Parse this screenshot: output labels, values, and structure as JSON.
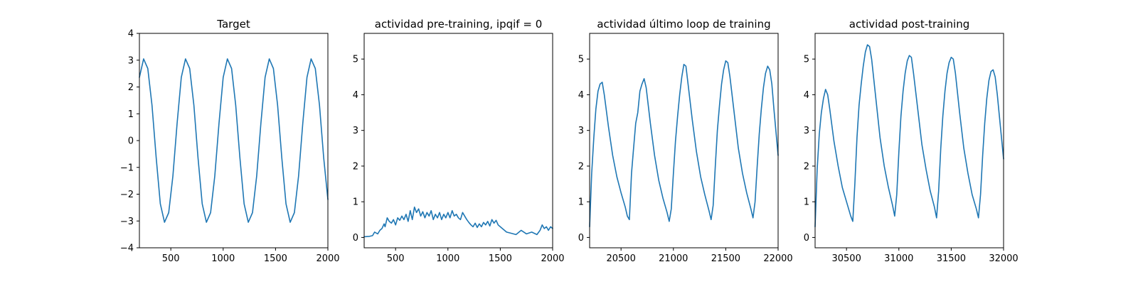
{
  "chart_data": [
    {
      "type": "line",
      "title": "Target",
      "xlabel": "",
      "ylabel": "",
      "xlim": [
        200,
        2000
      ],
      "ylim": [
        -4,
        4
      ],
      "xticks": [
        500,
        1000,
        1500,
        2000
      ],
      "yticks": [
        -4,
        -3,
        -2,
        -1,
        0,
        1,
        2,
        3,
        4
      ],
      "xtick_labels": [
        "500",
        "1000",
        "1500",
        "2000"
      ],
      "ytick_labels": [
        "−4",
        "−3",
        "−2",
        "−1",
        "0",
        "1",
        "2",
        "3",
        "4"
      ],
      "grid": false,
      "series": [
        {
          "color": "#1f77b4",
          "x": [
            200,
            240,
            280,
            320,
            360,
            400,
            440,
            480,
            520,
            560,
            600,
            640,
            680,
            720,
            760,
            800,
            840,
            880,
            920,
            960,
            1000,
            1040,
            1080,
            1120,
            1160,
            1200,
            1240,
            1280,
            1320,
            1360,
            1400,
            1440,
            1480,
            1520,
            1560,
            1600,
            1640,
            1680,
            1720,
            1760,
            1800,
            1840,
            1880,
            1920,
            1960,
            2000
          ],
          "y": [
            2.36,
            3.05,
            2.69,
            1.32,
            -0.64,
            -2.36,
            -3.05,
            -2.69,
            -1.32,
            0.64,
            2.36,
            3.05,
            2.69,
            1.32,
            -0.64,
            -2.36,
            -3.05,
            -2.69,
            -1.32,
            0.64,
            2.36,
            3.05,
            2.69,
            1.32,
            -0.64,
            -2.36,
            -3.05,
            -2.69,
            -1.32,
            0.64,
            2.36,
            3.05,
            2.69,
            1.32,
            -0.64,
            -2.36,
            -3.05,
            -2.69,
            -1.32,
            0.64,
            2.36,
            3.05,
            2.69,
            1.32,
            -0.64,
            -2.2
          ]
        }
      ]
    },
    {
      "type": "line",
      "title": "actividad pre-training, ipqif = 0",
      "xlabel": "",
      "ylabel": "",
      "xlim": [
        200,
        2000
      ],
      "ylim": [
        -0.29,
        5.72
      ],
      "xticks": [
        500,
        1000,
        1500,
        2000
      ],
      "yticks": [
        0,
        1,
        2,
        3,
        4,
        5
      ],
      "xtick_labels": [
        "500",
        "1000",
        "1500",
        "2000"
      ],
      "ytick_labels": [
        "0",
        "1",
        "2",
        "3",
        "4",
        "5"
      ],
      "grid": false,
      "series": [
        {
          "color": "#1f77b4",
          "x": [
            200,
            250,
            280,
            300,
            330,
            350,
            370,
            390,
            400,
            420,
            440,
            460,
            480,
            500,
            520,
            540,
            560,
            580,
            600,
            620,
            640,
            660,
            680,
            700,
            720,
            740,
            760,
            780,
            800,
            820,
            840,
            860,
            880,
            900,
            920,
            940,
            960,
            980,
            1000,
            1020,
            1040,
            1060,
            1080,
            1100,
            1120,
            1140,
            1160,
            1180,
            1200,
            1220,
            1240,
            1260,
            1280,
            1300,
            1320,
            1340,
            1360,
            1380,
            1400,
            1420,
            1440,
            1460,
            1480,
            1500,
            1520,
            1540,
            1560,
            1600,
            1650,
            1700,
            1750,
            1800,
            1850,
            1880,
            1900,
            1920,
            1940,
            1960,
            1980,
            2000
          ],
          "y": [
            0.02,
            0.03,
            0.05,
            0.15,
            0.1,
            0.2,
            0.25,
            0.38,
            0.3,
            0.55,
            0.45,
            0.4,
            0.5,
            0.35,
            0.55,
            0.48,
            0.6,
            0.5,
            0.65,
            0.45,
            0.75,
            0.5,
            0.85,
            0.7,
            0.8,
            0.6,
            0.72,
            0.55,
            0.7,
            0.6,
            0.75,
            0.5,
            0.65,
            0.55,
            0.7,
            0.5,
            0.65,
            0.55,
            0.7,
            0.55,
            0.75,
            0.6,
            0.65,
            0.55,
            0.5,
            0.7,
            0.6,
            0.5,
            0.42,
            0.35,
            0.3,
            0.4,
            0.28,
            0.38,
            0.3,
            0.42,
            0.35,
            0.45,
            0.32,
            0.5,
            0.4,
            0.48,
            0.35,
            0.3,
            0.25,
            0.2,
            0.15,
            0.12,
            0.08,
            0.2,
            0.1,
            0.15,
            0.08,
            0.2,
            0.35,
            0.25,
            0.3,
            0.2,
            0.3,
            0.25
          ]
        }
      ]
    },
    {
      "type": "line",
      "title": "actividad último loop de training",
      "xlabel": "",
      "ylabel": "",
      "xlim": [
        20200,
        22000
      ],
      "ylim": [
        -0.29,
        5.72
      ],
      "xticks": [
        20500,
        21000,
        21500,
        22000
      ],
      "yticks": [
        0,
        1,
        2,
        3,
        4,
        5
      ],
      "xtick_labels": [
        "20500",
        "21000",
        "21500",
        "22000"
      ],
      "ytick_labels": [
        "0",
        "1",
        "2",
        "3",
        "4",
        "5"
      ],
      "grid": false,
      "series": [
        {
          "color": "#1f77b4",
          "x": [
            20200,
            20220,
            20240,
            20260,
            20280,
            20300,
            20320,
            20340,
            20380,
            20420,
            20460,
            20500,
            20540,
            20560,
            20580,
            20600,
            20620,
            20640,
            20660,
            20680,
            20700,
            20720,
            20740,
            20780,
            20820,
            20860,
            20900,
            20940,
            20960,
            20980,
            21000,
            21020,
            21040,
            21060,
            21080,
            21100,
            21120,
            21140,
            21180,
            21220,
            21260,
            21300,
            21340,
            21360,
            21380,
            21400,
            21420,
            21440,
            21460,
            21480,
            21500,
            21520,
            21540,
            21580,
            21620,
            21660,
            21700,
            21740,
            21760,
            21780,
            21800,
            21820,
            21840,
            21860,
            21880,
            21900,
            21920,
            21940,
            21960,
            22000
          ],
          "y": [
            0.3,
            1.8,
            2.8,
            3.6,
            4.1,
            4.3,
            4.35,
            4.0,
            3.1,
            2.3,
            1.7,
            1.25,
            0.85,
            0.6,
            0.5,
            1.8,
            2.5,
            3.2,
            3.5,
            4.1,
            4.3,
            4.45,
            4.2,
            3.2,
            2.3,
            1.6,
            1.1,
            0.7,
            0.45,
            0.8,
            1.8,
            2.7,
            3.4,
            4.0,
            4.5,
            4.85,
            4.8,
            4.3,
            3.3,
            2.4,
            1.7,
            1.2,
            0.75,
            0.5,
            0.9,
            2.0,
            3.0,
            3.7,
            4.3,
            4.7,
            4.95,
            4.9,
            4.5,
            3.5,
            2.5,
            1.8,
            1.25,
            0.8,
            0.55,
            1.0,
            2.0,
            2.9,
            3.6,
            4.2,
            4.6,
            4.8,
            4.7,
            4.3,
            3.6,
            2.3
          ]
        }
      ]
    },
    {
      "type": "line",
      "title": "actividad post-training",
      "xlabel": "",
      "ylabel": "",
      "xlim": [
        30200,
        32000
      ],
      "ylim": [
        -0.29,
        5.72
      ],
      "xticks": [
        30500,
        31000,
        31500,
        32000
      ],
      "yticks": [
        0,
        1,
        2,
        3,
        4,
        5
      ],
      "xtick_labels": [
        "30500",
        "31000",
        "31500",
        "32000"
      ],
      "ytick_labels": [
        "0",
        "1",
        "2",
        "3",
        "4",
        "5"
      ],
      "grid": false,
      "series": [
        {
          "color": "#1f77b4",
          "x": [
            30200,
            30220,
            30240,
            30260,
            30280,
            30300,
            30320,
            30340,
            30380,
            30420,
            30460,
            30500,
            30540,
            30560,
            30580,
            30600,
            30620,
            30640,
            30660,
            30680,
            30700,
            30720,
            30740,
            30780,
            30820,
            30860,
            30900,
            30940,
            30960,
            30980,
            31000,
            31020,
            31040,
            31060,
            31080,
            31100,
            31120,
            31140,
            31180,
            31220,
            31260,
            31300,
            31340,
            31360,
            31380,
            31400,
            31420,
            31440,
            31460,
            31480,
            31500,
            31520,
            31540,
            31580,
            31620,
            31660,
            31700,
            31740,
            31760,
            31780,
            31800,
            31820,
            31840,
            31860,
            31880,
            31900,
            31920,
            31940,
            31960,
            32000
          ],
          "y": [
            0.3,
            1.9,
            2.9,
            3.5,
            3.9,
            4.15,
            4.0,
            3.6,
            2.7,
            2.0,
            1.4,
            1.0,
            0.6,
            0.45,
            1.5,
            2.8,
            3.7,
            4.3,
            4.8,
            5.2,
            5.4,
            5.35,
            5.0,
            3.9,
            2.8,
            2.0,
            1.4,
            0.9,
            0.6,
            1.2,
            2.4,
            3.4,
            4.1,
            4.6,
            4.95,
            5.1,
            5.05,
            4.6,
            3.6,
            2.6,
            1.9,
            1.3,
            0.85,
            0.55,
            1.3,
            2.5,
            3.4,
            4.1,
            4.6,
            4.9,
            5.05,
            5.0,
            4.6,
            3.5,
            2.5,
            1.8,
            1.2,
            0.8,
            0.55,
            1.2,
            2.3,
            3.2,
            3.9,
            4.4,
            4.65,
            4.7,
            4.5,
            4.0,
            3.4,
            2.2
          ]
        }
      ]
    }
  ]
}
